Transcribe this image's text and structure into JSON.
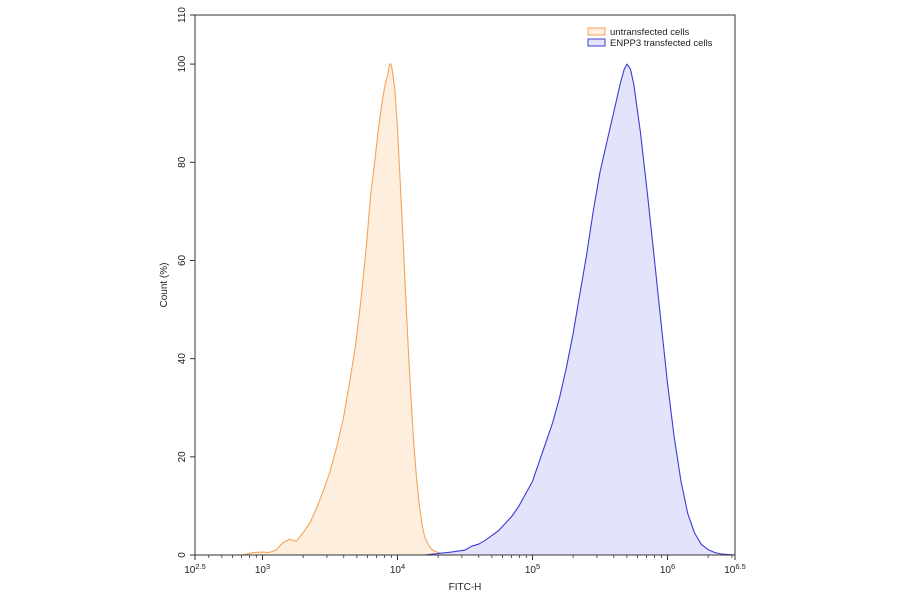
{
  "chart_data": {
    "type": "area",
    "xlabel": "FITC-H",
    "ylabel": "Count (%)",
    "x_scale": "log10",
    "xlim": [
      316.23,
      3162277.66
    ],
    "ylim": [
      0,
      110
    ],
    "x_ticks": [
      {
        "value": 316.23,
        "base": "10",
        "exp": "2.5"
      },
      {
        "value": 1000,
        "base": "10",
        "exp": "3"
      },
      {
        "value": 10000,
        "base": "10",
        "exp": "4"
      },
      {
        "value": 100000,
        "base": "10",
        "exp": "5"
      },
      {
        "value": 1000000,
        "base": "10",
        "exp": "6"
      },
      {
        "value": 3162277.66,
        "base": "10",
        "exp": "6.5"
      }
    ],
    "y_ticks": [
      "0",
      "20",
      "40",
      "60",
      "80",
      "100",
      "110"
    ],
    "grid": false,
    "legend_position": "top-right",
    "series": [
      {
        "name": "untransfected cells",
        "line_color": "#f5a35a",
        "fill_color": "#fdeedd",
        "points": [
          [
            708,
            0
          ],
          [
            851,
            0.5
          ],
          [
            1000,
            0.6
          ],
          [
            1122,
            0.5
          ],
          [
            1259,
            1.0
          ],
          [
            1413,
            2.5
          ],
          [
            1585,
            3.2
          ],
          [
            1778,
            2.8
          ],
          [
            1995,
            4.5
          ],
          [
            2239,
            6.5
          ],
          [
            2512,
            9.5
          ],
          [
            2818,
            13
          ],
          [
            3162,
            17
          ],
          [
            3548,
            22
          ],
          [
            3981,
            28
          ],
          [
            4467,
            36
          ],
          [
            4898,
            43
          ],
          [
            5370,
            52
          ],
          [
            5888,
            63
          ],
          [
            6310,
            73
          ],
          [
            6761,
            80
          ],
          [
            7244,
            87
          ],
          [
            7762,
            93
          ],
          [
            8128,
            96
          ],
          [
            8511,
            98
          ],
          [
            8710,
            100
          ],
          [
            8913,
            100
          ],
          [
            9120,
            99
          ],
          [
            9550,
            95
          ],
          [
            10000,
            87
          ],
          [
            10471,
            76
          ],
          [
            10965,
            65
          ],
          [
            11482,
            53
          ],
          [
            12023,
            42
          ],
          [
            12589,
            32
          ],
          [
            13183,
            23
          ],
          [
            13804,
            16
          ],
          [
            14454,
            10.5
          ],
          [
            15136,
            6.5
          ],
          [
            15849,
            3.8
          ],
          [
            16982,
            2.0
          ],
          [
            18197,
            1.0
          ],
          [
            19953,
            0.5
          ],
          [
            22387,
            0.3
          ],
          [
            25119,
            0
          ]
        ]
      },
      {
        "name": "ENPP3 transfected cells",
        "line_color": "#3b3bd6",
        "fill_color": "#e3e4fb",
        "points": [
          [
            15849,
            0
          ],
          [
            19953,
            0.3
          ],
          [
            25119,
            0.6
          ],
          [
            31623,
            1.0
          ],
          [
            35481,
            1.8
          ],
          [
            39811,
            2.2
          ],
          [
            44668,
            3.0
          ],
          [
            50119,
            4.0
          ],
          [
            56234,
            5.0
          ],
          [
            63096,
            6.5
          ],
          [
            70795,
            8.0
          ],
          [
            79433,
            10
          ],
          [
            89125,
            12.5
          ],
          [
            100000,
            15
          ],
          [
            112202,
            19
          ],
          [
            125893,
            23
          ],
          [
            141254,
            27
          ],
          [
            158489,
            32
          ],
          [
            177828,
            38
          ],
          [
            199526,
            45
          ],
          [
            223872,
            53
          ],
          [
            251189,
            61
          ],
          [
            281838,
            70
          ],
          [
            316228,
            78
          ],
          [
            354813,
            84
          ],
          [
            398107,
            90
          ],
          [
            446684,
            96
          ],
          [
            478630,
            99
          ],
          [
            501187,
            100
          ],
          [
            530884,
            99
          ],
          [
            562341,
            96
          ],
          [
            630957,
            86
          ],
          [
            707946,
            74
          ],
          [
            794328,
            61
          ],
          [
            891251,
            48
          ],
          [
            1000000,
            35
          ],
          [
            1122018,
            24
          ],
          [
            1258925,
            15
          ],
          [
            1412538,
            8.5
          ],
          [
            1584893,
            4.5
          ],
          [
            1778279,
            2.2
          ],
          [
            1995262,
            1.1
          ],
          [
            2238721,
            0.5
          ],
          [
            2511886,
            0.2
          ],
          [
            3162278,
            0
          ]
        ]
      }
    ]
  }
}
